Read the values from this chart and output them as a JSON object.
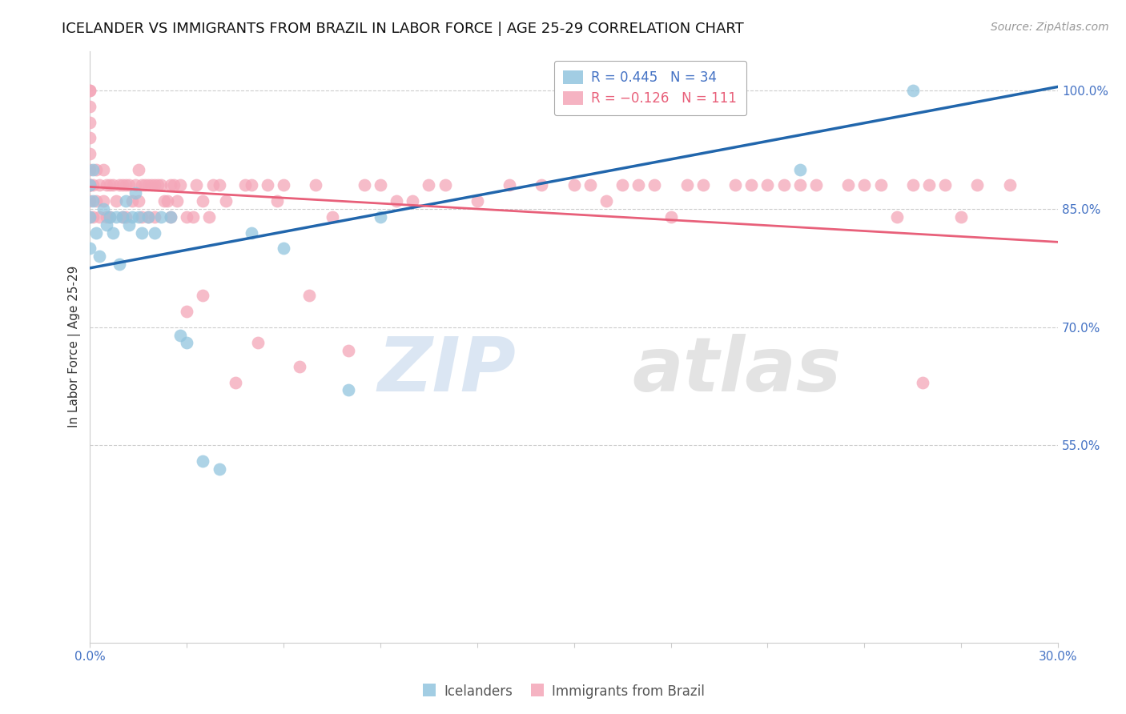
{
  "title": "ICELANDER VS IMMIGRANTS FROM BRAZIL IN LABOR FORCE | AGE 25-29 CORRELATION CHART",
  "source_text": "Source: ZipAtlas.com",
  "ylabel": "In Labor Force | Age 25-29",
  "xlim": [
    0.0,
    0.3
  ],
  "ylim": [
    0.3,
    1.05
  ],
  "yticks": [
    0.55,
    0.7,
    0.85,
    1.0
  ],
  "ytick_labels": [
    "55.0%",
    "70.0%",
    "85.0%",
    "100.0%"
  ],
  "xticks": [
    0.0,
    0.03,
    0.06,
    0.09,
    0.12,
    0.15,
    0.18,
    0.21,
    0.24,
    0.27,
    0.3
  ],
  "xtick_labels": [
    "0.0%",
    "",
    "",
    "",
    "",
    "",
    "",
    "",
    "",
    "",
    "30.0%"
  ],
  "blue_color": "#92c5de",
  "pink_color": "#f4a6b8",
  "line_blue": "#2166ac",
  "line_pink": "#e8607a",
  "legend_text_blue": "R = 0.445   N = 34",
  "legend_text_pink": "R = −0.126   N = 111",
  "watermark_zip": "ZIP",
  "watermark_atlas": "atlas",
  "legend_label_blue": "Icelanders",
  "legend_label_pink": "Immigrants from Brazil",
  "axis_color": "#4472c4",
  "grid_color": "#cccccc",
  "background_color": "#ffffff",
  "title_fontsize": 13,
  "label_fontsize": 11,
  "tick_fontsize": 11,
  "source_fontsize": 10,
  "blue_line_x0": 0.0,
  "blue_line_y0": 0.775,
  "blue_line_x1": 0.3,
  "blue_line_y1": 1.005,
  "pink_line_x0": 0.0,
  "pink_line_y0": 0.878,
  "pink_line_x1": 0.3,
  "pink_line_y1": 0.808,
  "blue_x": [
    0.0,
    0.0,
    0.0,
    0.001,
    0.001,
    0.002,
    0.003,
    0.004,
    0.005,
    0.006,
    0.007,
    0.008,
    0.009,
    0.01,
    0.011,
    0.012,
    0.013,
    0.014,
    0.015,
    0.016,
    0.018,
    0.02,
    0.022,
    0.025,
    0.028,
    0.03,
    0.035,
    0.04,
    0.05,
    0.06,
    0.08,
    0.09,
    0.22,
    0.255
  ],
  "blue_y": [
    0.84,
    0.88,
    0.8,
    0.86,
    0.9,
    0.82,
    0.79,
    0.85,
    0.83,
    0.84,
    0.82,
    0.84,
    0.78,
    0.84,
    0.86,
    0.83,
    0.84,
    0.87,
    0.84,
    0.82,
    0.84,
    0.82,
    0.84,
    0.84,
    0.69,
    0.68,
    0.53,
    0.52,
    0.82,
    0.8,
    0.62,
    0.84,
    0.9,
    1.0
  ],
  "pink_x": [
    0.0,
    0.0,
    0.0,
    0.0,
    0.0,
    0.0,
    0.0,
    0.0,
    0.0,
    0.0,
    0.0,
    0.0,
    0.0,
    0.001,
    0.001,
    0.002,
    0.002,
    0.003,
    0.003,
    0.004,
    0.004,
    0.005,
    0.005,
    0.006,
    0.006,
    0.007,
    0.008,
    0.009,
    0.01,
    0.01,
    0.011,
    0.011,
    0.012,
    0.013,
    0.014,
    0.015,
    0.015,
    0.016,
    0.016,
    0.017,
    0.018,
    0.018,
    0.019,
    0.02,
    0.02,
    0.021,
    0.022,
    0.023,
    0.024,
    0.025,
    0.025,
    0.026,
    0.027,
    0.028,
    0.03,
    0.03,
    0.032,
    0.033,
    0.035,
    0.035,
    0.037,
    0.038,
    0.04,
    0.042,
    0.045,
    0.048,
    0.05,
    0.052,
    0.055,
    0.058,
    0.06,
    0.065,
    0.068,
    0.07,
    0.075,
    0.08,
    0.085,
    0.09,
    0.095,
    0.1,
    0.105,
    0.11,
    0.12,
    0.13,
    0.14,
    0.15,
    0.155,
    0.16,
    0.165,
    0.17,
    0.175,
    0.18,
    0.185,
    0.19,
    0.2,
    0.205,
    0.21,
    0.215,
    0.22,
    0.225,
    0.235,
    0.24,
    0.245,
    0.25,
    0.255,
    0.258,
    0.26,
    0.265,
    0.27,
    0.275,
    0.285
  ],
  "pink_y": [
    0.84,
    0.86,
    0.88,
    0.9,
    0.92,
    0.94,
    0.96,
    0.98,
    1.0,
    1.0,
    0.88,
    0.88,
    0.88,
    0.88,
    0.84,
    0.86,
    0.9,
    0.88,
    0.84,
    0.9,
    0.86,
    0.88,
    0.84,
    0.88,
    0.84,
    0.88,
    0.86,
    0.88,
    0.88,
    0.84,
    0.88,
    0.84,
    0.88,
    0.86,
    0.88,
    0.9,
    0.86,
    0.88,
    0.84,
    0.88,
    0.88,
    0.84,
    0.88,
    0.88,
    0.84,
    0.88,
    0.88,
    0.86,
    0.86,
    0.88,
    0.84,
    0.88,
    0.86,
    0.88,
    0.84,
    0.72,
    0.84,
    0.88,
    0.86,
    0.74,
    0.84,
    0.88,
    0.88,
    0.86,
    0.63,
    0.88,
    0.88,
    0.68,
    0.88,
    0.86,
    0.88,
    0.65,
    0.74,
    0.88,
    0.84,
    0.67,
    0.88,
    0.88,
    0.86,
    0.86,
    0.88,
    0.88,
    0.86,
    0.88,
    0.88,
    0.88,
    0.88,
    0.86,
    0.88,
    0.88,
    0.88,
    0.84,
    0.88,
    0.88,
    0.88,
    0.88,
    0.88,
    0.88,
    0.88,
    0.88,
    0.88,
    0.88,
    0.88,
    0.84,
    0.88,
    0.63,
    0.88,
    0.88,
    0.84,
    0.88,
    0.88
  ]
}
